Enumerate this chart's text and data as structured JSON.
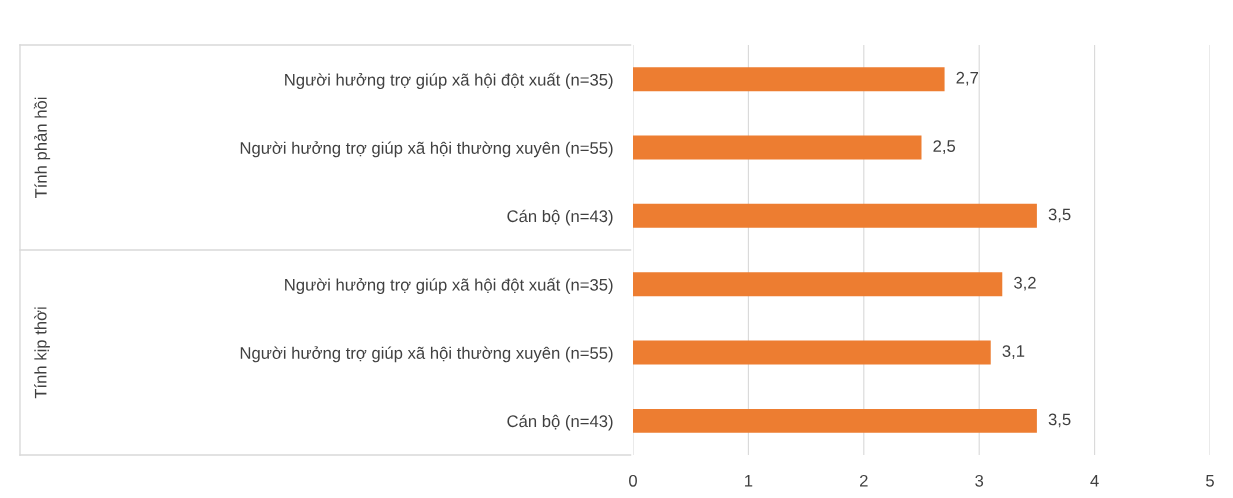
{
  "chart_data": {
    "type": "bar",
    "orientation": "horizontal",
    "categories": [
      "Người hưởng trợ giúp xã hội đột xuất (n=35)",
      "Người hưởng trợ giúp xã hội thường xuyên (n=55)",
      "Cán bộ (n=43)",
      "Người hưởng trợ giúp xã hội đột xuất (n=35)",
      "Người hưởng trợ giúp xã hội thường xuyên (n=55)",
      "Cán bộ (n=43)"
    ],
    "values": [
      2.7,
      2.5,
      3.5,
      3.2,
      3.1,
      3.5
    ],
    "value_labels": [
      "2,7",
      "2,5",
      "3,5",
      "3,2",
      "3,1",
      "3,5"
    ],
    "color": "#ed7d31",
    "xlim": [
      0,
      5
    ],
    "xticks": [
      0,
      1,
      2,
      3,
      4,
      5
    ],
    "grid": "x",
    "legend": false,
    "annotations": [
      "Tính phản hồi",
      "Tính kịp thời"
    ]
  }
}
